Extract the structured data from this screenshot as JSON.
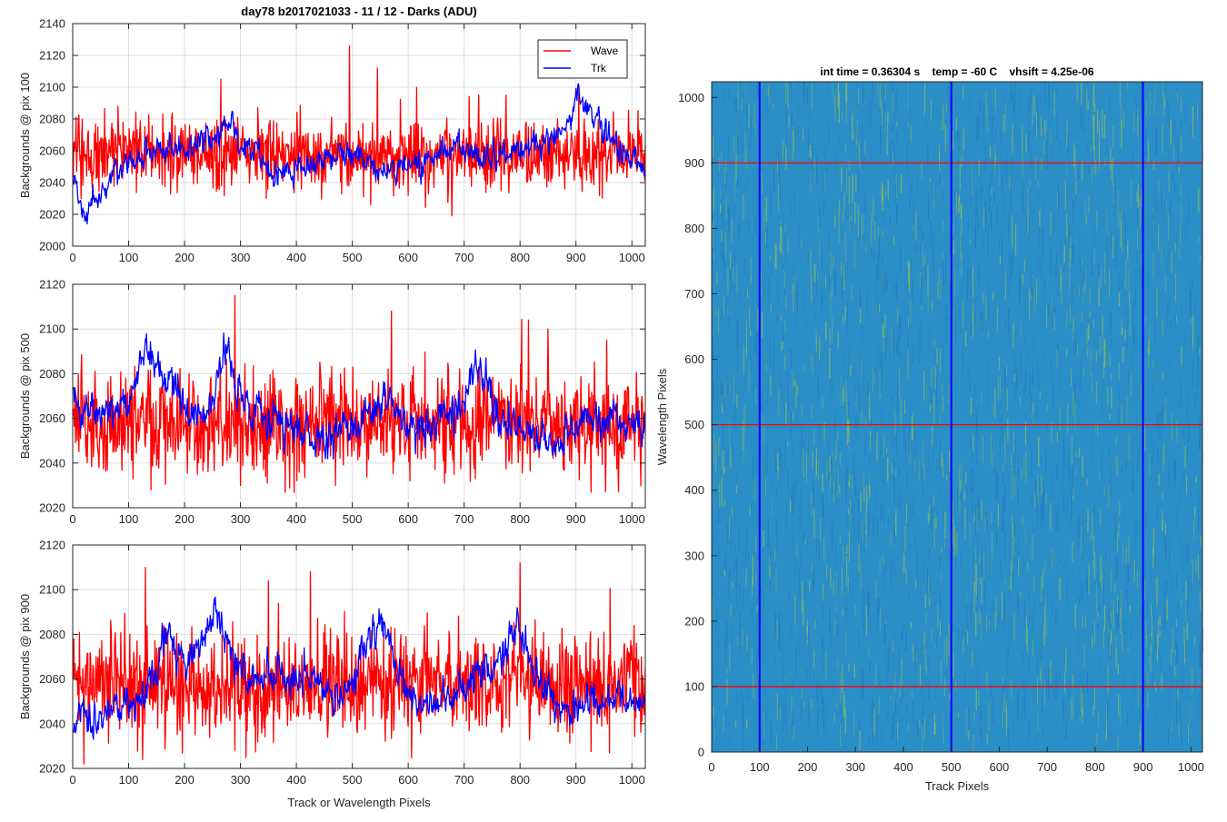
{
  "figure": {
    "title": "day78 b2017021033 - 11 / 12 - Darks (ADU)"
  },
  "colors": {
    "wave": "#ff0000",
    "trk": "#0000ff",
    "grid": "#dddddd",
    "axis": "#262626",
    "image_base": "#2a8fc6",
    "image_high": "#9cc05a",
    "image_low": "#1c73c0"
  },
  "chart_data": [
    {
      "type": "line",
      "ylabel": "Backgrounds @ pix 100",
      "xlabel": "",
      "xlim": [
        0,
        1024
      ],
      "ylim": [
        2000,
        2140
      ],
      "xticks": [
        0,
        100,
        200,
        300,
        400,
        500,
        600,
        700,
        800,
        900,
        1000
      ],
      "yticks": [
        2000,
        2020,
        2040,
        2060,
        2080,
        2100,
        2120,
        2140
      ],
      "legend": {
        "position": "top-right",
        "entries": [
          "Wave",
          "Trk"
        ]
      },
      "series": [
        {
          "name": "Wave",
          "color": "#ff0000",
          "mean": 2058,
          "noise": 11,
          "spike_max": 2126,
          "spikes": [
            [
              495,
              2126
            ],
            [
              265,
              2105
            ],
            [
              545,
              2112
            ],
            [
              615,
              2100
            ],
            [
              905,
              2100
            ],
            [
              775,
              2095
            ]
          ],
          "dips": [
            [
              15,
              2030
            ],
            [
              600,
              2032
            ],
            [
              880,
              2036
            ]
          ],
          "seed": 11
        },
        {
          "name": "Trk",
          "color": "#0000ff",
          "mean": 2056,
          "noise": 6,
          "trend": [
            [
              0,
              2040
            ],
            [
              20,
              2018
            ],
            [
              40,
              2030
            ],
            [
              70,
              2044
            ],
            [
              120,
              2058
            ],
            [
              250,
              2068
            ],
            [
              270,
              2078
            ],
            [
              300,
              2066
            ],
            [
              360,
              2046
            ],
            [
              420,
              2050
            ],
            [
              470,
              2058
            ],
            [
              520,
              2056
            ],
            [
              560,
              2046
            ],
            [
              600,
              2050
            ],
            [
              680,
              2062
            ],
            [
              760,
              2056
            ],
            [
              830,
              2064
            ],
            [
              880,
              2072
            ],
            [
              905,
              2098
            ],
            [
              930,
              2082
            ],
            [
              980,
              2060
            ],
            [
              1024,
              2052
            ]
          ],
          "seed": 12
        }
      ]
    },
    {
      "type": "line",
      "ylabel": "Backgrounds @ pix 500",
      "xlabel": "",
      "xlim": [
        0,
        1024
      ],
      "ylim": [
        2020,
        2120
      ],
      "xticks": [
        0,
        100,
        200,
        300,
        400,
        500,
        600,
        700,
        800,
        900,
        1000
      ],
      "yticks": [
        2020,
        2040,
        2060,
        2080,
        2100,
        2120
      ],
      "series": [
        {
          "name": "Wave",
          "color": "#ff0000",
          "mean": 2058,
          "noise": 11,
          "spikes": [
            [
              290,
              2115
            ],
            [
              570,
              2108
            ],
            [
              815,
              2104
            ],
            [
              850,
              2100
            ],
            [
              955,
              2095
            ]
          ],
          "dips": [
            [
              140,
              2028
            ],
            [
              300,
              2030
            ],
            [
              470,
              2030
            ],
            [
              665,
              2031
            ]
          ],
          "seed": 21
        },
        {
          "name": "Trk",
          "color": "#0000ff",
          "mean": 2062,
          "noise": 6,
          "trend": [
            [
              0,
              2064
            ],
            [
              60,
              2060
            ],
            [
              110,
              2072
            ],
            [
              130,
              2098
            ],
            [
              150,
              2080
            ],
            [
              180,
              2076
            ],
            [
              220,
              2058
            ],
            [
              250,
              2070
            ],
            [
              270,
              2092
            ],
            [
              300,
              2070
            ],
            [
              350,
              2060
            ],
            [
              400,
              2054
            ],
            [
              460,
              2050
            ],
            [
              520,
              2060
            ],
            [
              560,
              2070
            ],
            [
              600,
              2056
            ],
            [
              680,
              2062
            ],
            [
              730,
              2086
            ],
            [
              760,
              2062
            ],
            [
              830,
              2050
            ],
            [
              900,
              2056
            ],
            [
              960,
              2062
            ],
            [
              1024,
              2058
            ]
          ],
          "seed": 22
        }
      ]
    },
    {
      "type": "line",
      "ylabel": "Backgrounds @ pix 900",
      "xlabel": "Track or Wavelength Pixels",
      "xlim": [
        0,
        1024
      ],
      "ylim": [
        2020,
        2120
      ],
      "xticks": [
        0,
        100,
        200,
        300,
        400,
        500,
        600,
        700,
        800,
        900,
        1000
      ],
      "yticks": [
        2020,
        2040,
        2060,
        2080,
        2100,
        2120
      ],
      "series": [
        {
          "name": "Wave",
          "color": "#ff0000",
          "mean": 2058,
          "noise": 11,
          "spikes": [
            [
              130,
              2110
            ],
            [
              425,
              2108
            ],
            [
              800,
              2112
            ],
            [
              290,
              2100
            ],
            [
              350,
              2104
            ]
          ],
          "dips": [
            [
              20,
              2022
            ],
            [
              125,
              2024
            ],
            [
              290,
              2028
            ],
            [
              960,
              2027
            ]
          ],
          "seed": 31
        },
        {
          "name": "Trk",
          "color": "#0000ff",
          "mean": 2056,
          "noise": 6,
          "trend": [
            [
              0,
              2040
            ],
            [
              40,
              2042
            ],
            [
              90,
              2048
            ],
            [
              140,
              2058
            ],
            [
              170,
              2082
            ],
            [
              200,
              2064
            ],
            [
              260,
              2090
            ],
            [
              290,
              2066
            ],
            [
              340,
              2060
            ],
            [
              400,
              2062
            ],
            [
              440,
              2060
            ],
            [
              480,
              2050
            ],
            [
              550,
              2088
            ],
            [
              580,
              2060
            ],
            [
              620,
              2050
            ],
            [
              700,
              2056
            ],
            [
              760,
              2070
            ],
            [
              800,
              2082
            ],
            [
              830,
              2060
            ],
            [
              880,
              2046
            ],
            [
              940,
              2052
            ],
            [
              1024,
              2048
            ]
          ],
          "seed": 32
        }
      ]
    },
    {
      "type": "heatmap",
      "title": "int time = 0.36304 s    temp = -60 C    vhsift = 4.25e-06",
      "xlabel": "Track Pixels",
      "ylabel": "Wavelength Pixels",
      "xlim": [
        0,
        1024
      ],
      "ylim": [
        0,
        1024
      ],
      "xticks": [
        0,
        100,
        200,
        300,
        400,
        500,
        600,
        700,
        800,
        900,
        1000
      ],
      "yticks": [
        0,
        100,
        200,
        300,
        400,
        500,
        600,
        700,
        800,
        900,
        1000
      ],
      "horizontal_markers": [
        100,
        500,
        900
      ],
      "vertical_markers": [
        100,
        500,
        900
      ],
      "horizontal_marker_color": "#ff0000",
      "vertical_marker_color": "#0000ff",
      "bright_bands": [
        [
          270,
          0.4
        ],
        [
          490,
          0.35
        ],
        [
          800,
          0.5
        ],
        [
          850,
          0.3
        ],
        [
          920,
          0.3
        ]
      ],
      "seed": 41
    }
  ]
}
